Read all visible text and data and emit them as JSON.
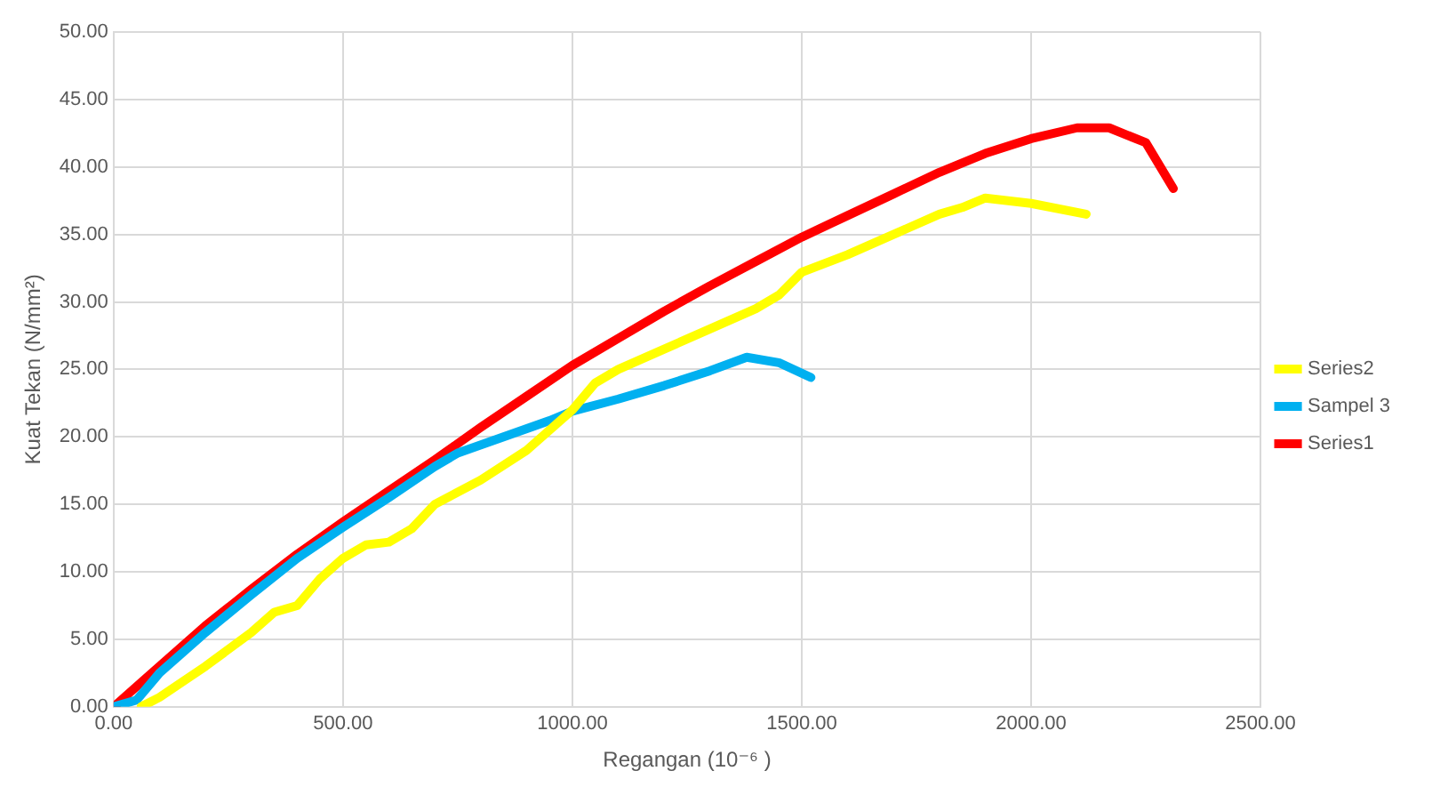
{
  "chart_data": {
    "type": "line",
    "xlabel": "Regangan (10⁻⁶ )",
    "ylabel": "Kuat Tekan (N/mm²)",
    "xlim": [
      0,
      2500
    ],
    "ylim": [
      0,
      50
    ],
    "xticks": [
      {
        "value": 0,
        "label": "0.00"
      },
      {
        "value": 500,
        "label": "500.00"
      },
      {
        "value": 1000,
        "label": "1000.00"
      },
      {
        "value": 1500,
        "label": "1500.00"
      },
      {
        "value": 2000,
        "label": "2000.00"
      },
      {
        "value": 2500,
        "label": "2500.00"
      }
    ],
    "yticks": [
      {
        "value": 0,
        "label": "0.00"
      },
      {
        "value": 5,
        "label": "5.00"
      },
      {
        "value": 10,
        "label": "10.00"
      },
      {
        "value": 15,
        "label": "15.00"
      },
      {
        "value": 20,
        "label": "20.00"
      },
      {
        "value": 25,
        "label": "25.00"
      },
      {
        "value": 30,
        "label": "30.00"
      },
      {
        "value": 35,
        "label": "35.00"
      },
      {
        "value": 40,
        "label": "40.00"
      },
      {
        "value": 45,
        "label": "45.00"
      },
      {
        "value": 50,
        "label": "50.00"
      }
    ],
    "grid": true,
    "legend": "right",
    "marker": "none",
    "line_style": "solid",
    "series": [
      {
        "name": "Series2",
        "color": "#ffff00",
        "x": [
          60,
          100,
          200,
          300,
          350,
          400,
          450,
          500,
          550,
          600,
          650,
          700,
          800,
          900,
          1000,
          1050,
          1100,
          1200,
          1300,
          1400,
          1450,
          1500,
          1600,
          1700,
          1800,
          1850,
          1900,
          2000,
          2120
        ],
        "values": [
          0,
          0.7,
          3,
          5.5,
          7,
          7.5,
          9.5,
          11,
          12,
          12.2,
          13.2,
          15,
          16.8,
          19,
          22,
          24,
          25,
          26.5,
          28,
          29.5,
          30.5,
          32.2,
          33.5,
          35,
          36.5,
          37,
          37.7,
          37.3,
          36.5
        ]
      },
      {
        "name": "Sampel 3",
        "color": "#00b0f0",
        "x": [
          0,
          50,
          100,
          200,
          300,
          400,
          500,
          600,
          700,
          750,
          850,
          950,
          1000,
          1100,
          1200,
          1300,
          1380,
          1450,
          1520
        ],
        "values": [
          0,
          0.5,
          2.5,
          5.5,
          8.3,
          11,
          13.3,
          15.5,
          17.8,
          18.8,
          20,
          21.2,
          21.9,
          22.8,
          23.8,
          24.9,
          25.9,
          25.5,
          24.4
        ]
      },
      {
        "name": "Series1",
        "color": "#ff0000",
        "x": [
          0,
          100,
          200,
          300,
          400,
          500,
          600,
          700,
          800,
          900,
          1000,
          1100,
          1200,
          1300,
          1400,
          1500,
          1600,
          1700,
          1800,
          1900,
          2000,
          2100,
          2170,
          2250,
          2310
        ],
        "values": [
          0,
          3,
          6,
          8.7,
          11.3,
          13.7,
          16,
          18.3,
          20.7,
          23,
          25.3,
          27.3,
          29.3,
          31.2,
          33,
          34.8,
          36.4,
          38,
          39.6,
          41,
          42.1,
          42.9,
          42.9,
          41.8,
          38.4
        ]
      }
    ]
  }
}
